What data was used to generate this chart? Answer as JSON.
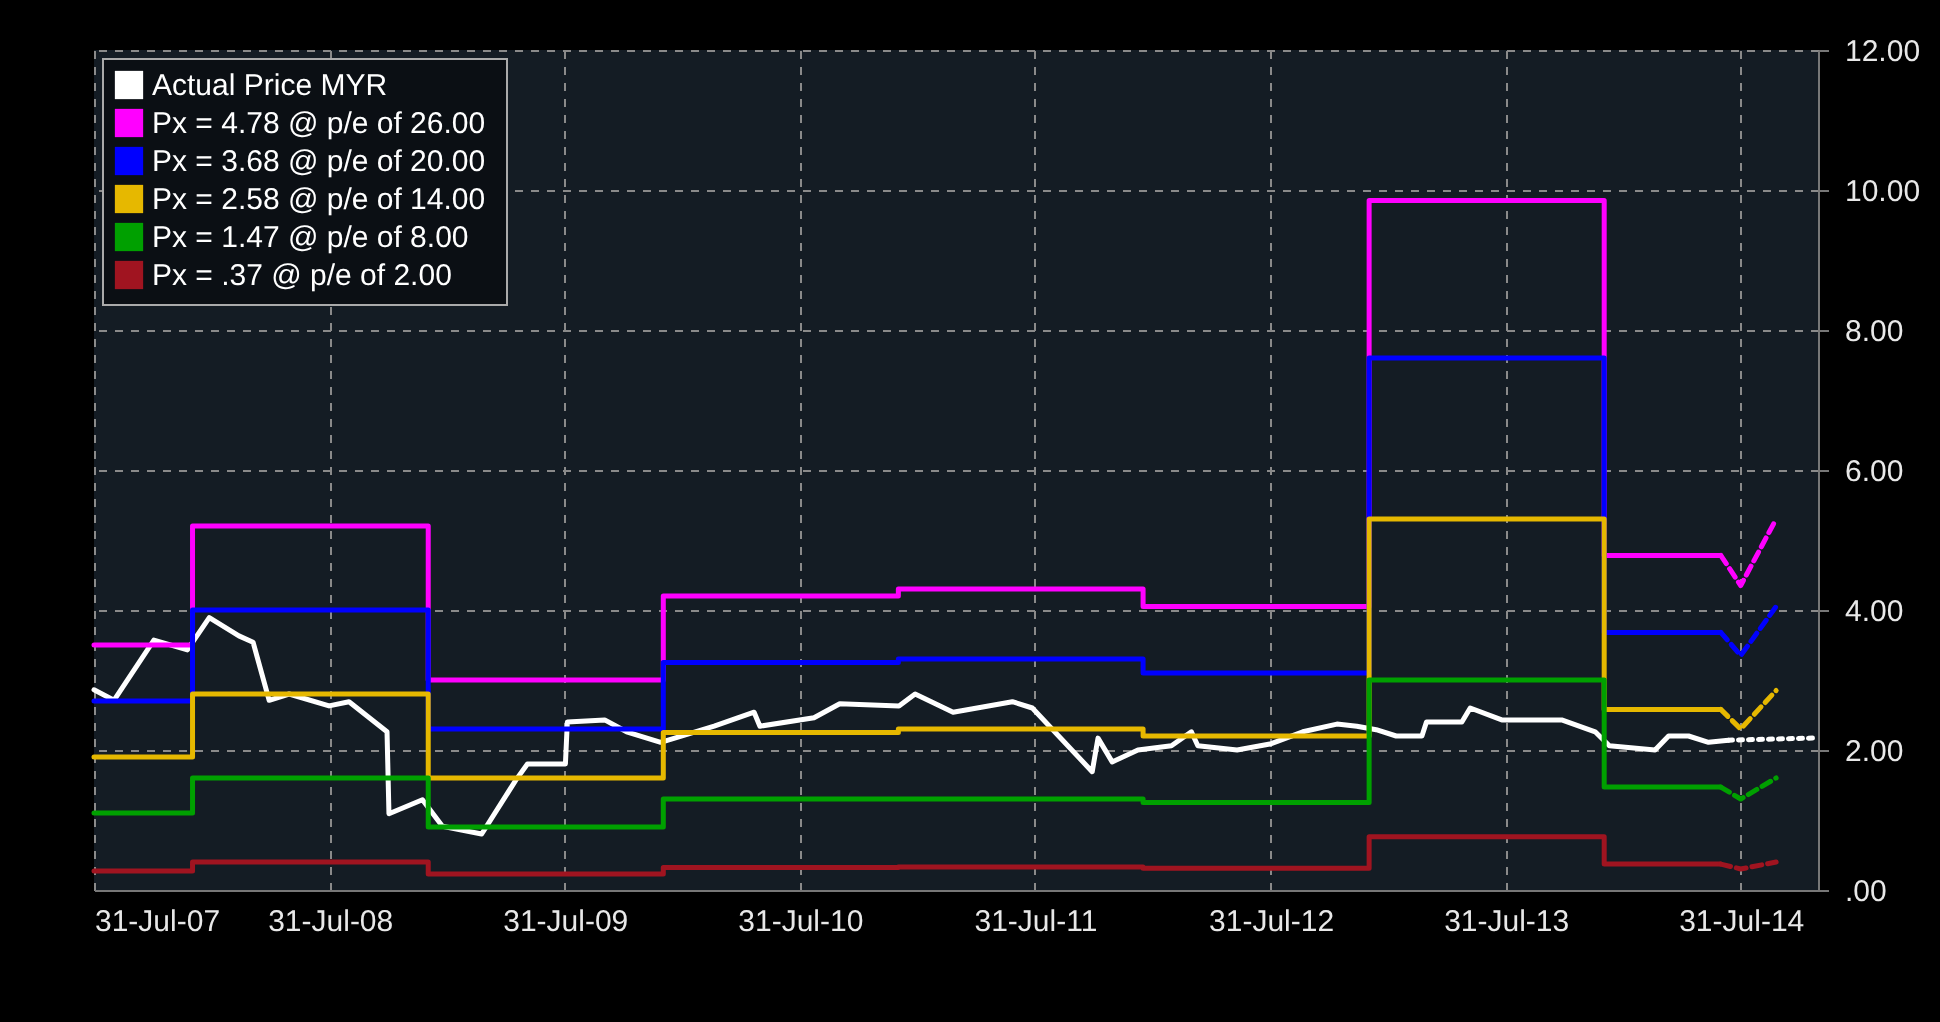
{
  "chart_data": {
    "type": "line",
    "legend": "top left",
    "grid": true,
    "marker": "none",
    "xlim": [
      "2007-07-31",
      "2014-11-28"
    ],
    "xticks": [
      {
        "value": "2007-07-31",
        "label": "31-Jul-07"
      },
      {
        "value": "2008-07-31",
        "label": "31-Jul-08"
      },
      {
        "value": "2009-07-31",
        "label": "31-Jul-09"
      },
      {
        "value": "2010-07-31",
        "label": "31-Jul-10"
      },
      {
        "value": "2011-07-31",
        "label": "31-Jul-11"
      },
      {
        "value": "2012-07-31",
        "label": "31-Jul-12"
      },
      {
        "value": "2013-07-31",
        "label": "31-Jul-13"
      },
      {
        "value": "2014-07-31",
        "label": "31-Jul-14"
      }
    ],
    "ylim": [
      0,
      12
    ],
    "yticks": [
      {
        "value": 0,
        "label": ".00"
      },
      {
        "value": 2,
        "label": "2.00"
      },
      {
        "value": 4,
        "label": "4.00"
      },
      {
        "value": 6,
        "label": "6.00"
      },
      {
        "value": 8,
        "label": "8.00"
      },
      {
        "value": 10,
        "label": "10.00"
      },
      {
        "value": 12,
        "label": "12.00"
      }
    ],
    "series": [
      {
        "name": "Actual Price MYR",
        "type": "line",
        "color": "#ffffff",
        "x": [
          "2007-07-31",
          "2007-08-31",
          "2007-11-01",
          "2007-12-23",
          "2008-01-26",
          "2008-03-12",
          "2008-04-03",
          "2008-04-28",
          "2008-05-29",
          "2008-07-30",
          "2008-08-30",
          "2008-10-28",
          "2008-10-31",
          "2008-12-22",
          "2009-01-22",
          "2009-03-24",
          "2009-05-16",
          "2009-06-03",
          "2009-08-01",
          "2009-08-04",
          "2009-10-01",
          "2009-11-04",
          "2009-12-27",
          "2010-03-20",
          "2010-05-21",
          "2010-05-30",
          "2010-08-22",
          "2010-10-01",
          "2011-01-01",
          "2011-01-26",
          "2011-03-26",
          "2011-06-26",
          "2011-07-27",
          "2011-10-28",
          "2011-11-06",
          "2011-11-28",
          "2012-01-07",
          "2012-02-28",
          "2012-03-30",
          "2012-04-09",
          "2012-06-09",
          "2012-08-01",
          "2012-09-19",
          "2012-11-11",
          "2012-12-12",
          "2013-01-11",
          "2013-02-11",
          "2013-03-23",
          "2013-03-30",
          "2013-05-24",
          "2013-06-06",
          "2013-07-25",
          "2013-10-26",
          "2013-12-17",
          "2014-01-08",
          "2014-03-20",
          "2014-04-10",
          "2014-05-11",
          "2014-06-11",
          "2014-07-12"
        ],
        "values": [
          2.86,
          2.71,
          3.57,
          3.43,
          3.89,
          3.63,
          3.54,
          2.71,
          2.8,
          2.63,
          2.69,
          2.26,
          1.09,
          1.29,
          0.91,
          0.8,
          1.57,
          1.8,
          1.8,
          2.4,
          2.43,
          2.26,
          2.11,
          2.34,
          2.54,
          2.34,
          2.46,
          2.66,
          2.63,
          2.8,
          2.54,
          2.69,
          2.6,
          1.69,
          2.17,
          1.83,
          2.0,
          2.06,
          2.26,
          2.06,
          2.0,
          2.09,
          2.26,
          2.37,
          2.34,
          2.29,
          2.2,
          2.2,
          2.4,
          2.4,
          2.6,
          2.43,
          2.43,
          2.26,
          2.06,
          2.0,
          2.2,
          2.2,
          2.11,
          2.14
        ]
      },
      {
        "name": "Px =  4.78 @ p/e of 26.00",
        "type": "step",
        "color": "#ff00ff",
        "x": [
          "2007-07-31",
          "2007-12-31",
          "2008-12-31",
          "2009-12-31",
          "2010-12-31",
          "2012-01-15",
          "2012-12-31",
          "2013-12-31",
          "2014-06-30"
        ],
        "values": [
          3.5,
          5.2,
          3.0,
          4.2,
          4.3,
          4.05,
          9.85,
          4.78,
          4.78
        ]
      },
      {
        "name": "Px = 3.68 @ p/e of 20.00",
        "type": "step",
        "color": "#0000ff",
        "x": [
          "2007-07-31",
          "2007-12-31",
          "2008-12-31",
          "2009-12-31",
          "2010-12-31",
          "2012-01-15",
          "2012-12-31",
          "2013-12-31",
          "2014-06-30"
        ],
        "values": [
          2.7,
          4.0,
          2.3,
          3.25,
          3.3,
          3.1,
          7.6,
          3.68,
          3.68
        ]
      },
      {
        "name": "Px =  2.58 @ p/e of 14.00",
        "type": "step",
        "color": "#e6b800",
        "x": [
          "2007-07-31",
          "2007-12-31",
          "2008-12-31",
          "2009-12-31",
          "2010-12-31",
          "2012-01-15",
          "2012-12-31",
          "2013-12-31",
          "2014-06-30"
        ],
        "values": [
          1.9,
          2.8,
          1.6,
          2.25,
          2.3,
          2.2,
          5.3,
          2.58,
          2.58
        ]
      },
      {
        "name": "Px =  1.47 @ p/e of 8.00",
        "type": "step",
        "color": "#00a000",
        "x": [
          "2007-07-31",
          "2007-12-31",
          "2008-12-31",
          "2009-12-31",
          "2010-12-31",
          "2012-01-15",
          "2012-12-31",
          "2013-12-31",
          "2014-06-30"
        ],
        "values": [
          1.1,
          1.6,
          0.9,
          1.3,
          1.3,
          1.25,
          3.0,
          1.47,
          1.47
        ]
      },
      {
        "name": "Px =   .37 @ p/e of 2.00",
        "type": "step",
        "color": "#a01420",
        "x": [
          "2007-07-31",
          "2007-12-31",
          "2008-12-31",
          "2009-12-31",
          "2010-12-31",
          "2012-01-15",
          "2012-12-31",
          "2013-12-31",
          "2014-06-30"
        ],
        "values": [
          0.27,
          0.4,
          0.23,
          0.32,
          0.33,
          0.31,
          0.76,
          0.37,
          0.37
        ]
      },
      {
        "type": "line",
        "line_style": "dashed",
        "color": "#ff00ff",
        "x": [
          "2014-06-30",
          "2014-07-31",
          "2014-09-24"
        ],
        "values": [
          4.78,
          4.35,
          5.3
        ]
      },
      {
        "type": "line",
        "line_style": "dashed",
        "color": "#0000ff",
        "x": [
          "2014-06-30",
          "2014-07-31",
          "2014-09-24"
        ],
        "values": [
          3.68,
          3.35,
          4.05
        ]
      },
      {
        "type": "line",
        "line_style": "dashed",
        "color": "#e6b800",
        "x": [
          "2014-06-30",
          "2014-07-31",
          "2014-09-24"
        ],
        "values": [
          2.58,
          2.3,
          2.85
        ]
      },
      {
        "type": "line",
        "line_style": "dashed",
        "color": "#00a000",
        "x": [
          "2014-06-30",
          "2014-07-31",
          "2014-09-24"
        ],
        "values": [
          1.47,
          1.3,
          1.6
        ]
      },
      {
        "type": "line",
        "line_style": "dashed",
        "color": "#a01420",
        "x": [
          "2014-06-30",
          "2014-07-31",
          "2014-09-24"
        ],
        "values": [
          0.37,
          0.3,
          0.4
        ]
      },
      {
        "type": "line",
        "line_style": "dotted",
        "color": "#ffffff",
        "x": [
          "2014-07-12",
          "2014-11-20"
        ],
        "values": [
          2.14,
          2.17
        ]
      }
    ]
  }
}
